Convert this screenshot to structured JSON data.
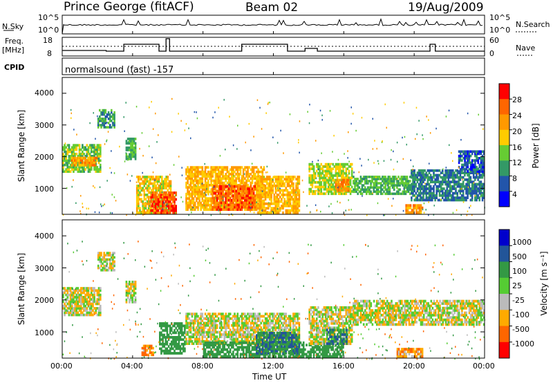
{
  "header": {
    "station": "Prince George (fitACF)",
    "beam": "Beam 02",
    "date": "19/Aug/2009"
  },
  "nsky_panel": {
    "left_label": "N.Sky",
    "right_label": "N.Search",
    "left_ticks": [
      "10^5",
      "10^0"
    ],
    "right_ticks": [
      "10^5",
      "10^0"
    ]
  },
  "freq_panel": {
    "left_label_line1": "Freq.",
    "left_label_line2": "[MHz]",
    "right_label": "Nave",
    "left_ticks": [
      "18",
      "8"
    ],
    "right_ticks": [
      "60",
      "0"
    ]
  },
  "cpid_panel": {
    "label": "CPID",
    "mode_text": "normalsound (fast) -157"
  },
  "power_panel": {
    "ylabel": "Slant Range [km]",
    "yticks": [
      "4000",
      "3000",
      "2000",
      "1000"
    ],
    "colorbar_label": "Power [dB]",
    "colorbar_ticks": [
      "28",
      "24",
      "20",
      "16",
      "12",
      "8",
      "4"
    ]
  },
  "velocity_panel": {
    "ylabel": "Slant Range [km]",
    "yticks": [
      "4000",
      "3000",
      "2000",
      "1000"
    ],
    "colorbar_label": "Velocity [m s⁻¹]",
    "colorbar_ticks": [
      "1000",
      "500",
      "100",
      "25",
      "-25",
      "-100",
      "-500",
      "-1000"
    ]
  },
  "xaxis": {
    "label": "Time UT",
    "ticks": [
      "00:00",
      "04:00",
      "08:00",
      "12:00",
      "16:00",
      "20:00",
      "00:00"
    ]
  },
  "chart_data": [
    {
      "type": "heatmap",
      "title": "Power",
      "xlabel": "Time UT",
      "ylabel": "Slant Range [km]",
      "ylim": [
        180,
        4500
      ],
      "xlim_hours": [
        0,
        24
      ],
      "colorbar": {
        "label": "Power [dB]",
        "ticks": [
          28,
          24,
          20,
          16,
          12,
          8,
          4
        ],
        "colors": [
          "#ff0000",
          "#ff6600",
          "#ff9900",
          "#ffcc00",
          "#66cc33",
          "#339966",
          "#2255aa",
          "#0000ff"
        ]
      },
      "regions": [
        {
          "t0": 0.0,
          "t1": 2.2,
          "r0": 1500,
          "r1": 2400,
          "db": 14
        },
        {
          "t0": 0.5,
          "t1": 2.0,
          "r0": 1700,
          "r1": 2000,
          "db": 22
        },
        {
          "t0": 2.0,
          "t1": 3.0,
          "r0": 2900,
          "r1": 3500,
          "db": 10
        },
        {
          "t0": 3.6,
          "t1": 4.2,
          "r0": 1900,
          "r1": 2600,
          "db": 12
        },
        {
          "t0": 4.2,
          "t1": 6.2,
          "r0": 200,
          "r1": 1400,
          "db": 18
        },
        {
          "t0": 5.0,
          "t1": 6.5,
          "r0": 200,
          "r1": 900,
          "db": 27
        },
        {
          "t0": 7.0,
          "t1": 11.5,
          "r0": 300,
          "r1": 1700,
          "db": 20
        },
        {
          "t0": 8.5,
          "t1": 11.0,
          "r0": 300,
          "r1": 1100,
          "db": 26
        },
        {
          "t0": 11.0,
          "t1": 13.5,
          "r0": 200,
          "r1": 1400,
          "db": 20
        },
        {
          "t0": 14.0,
          "t1": 16.5,
          "r0": 800,
          "r1": 1800,
          "db": 16
        },
        {
          "t0": 15.5,
          "t1": 16.3,
          "r0": 900,
          "r1": 1300,
          "db": 24
        },
        {
          "t0": 16.5,
          "t1": 19.8,
          "r0": 800,
          "r1": 1400,
          "db": 12
        },
        {
          "t0": 19.5,
          "t1": 20.5,
          "r0": 200,
          "r1": 500,
          "db": 22
        },
        {
          "t0": 19.8,
          "t1": 24.0,
          "r0": 600,
          "r1": 1600,
          "db": 8
        },
        {
          "t0": 22.5,
          "t1": 24.0,
          "r0": 1500,
          "r1": 2200,
          "db": 6
        }
      ]
    },
    {
      "type": "heatmap",
      "title": "Velocity",
      "xlabel": "Time UT",
      "ylabel": "Slant Range [km]",
      "ylim": [
        180,
        4500
      ],
      "xlim_hours": [
        0,
        24
      ],
      "colorbar": {
        "label": "Velocity [m s⁻¹]",
        "ticks": [
          1000,
          500,
          100,
          25,
          -25,
          -100,
          -500,
          -1000
        ],
        "colors": [
          "#0000cc",
          "#225599",
          "#339944",
          "#55cc33",
          "#bbbbbb",
          "#ffaa00",
          "#ff6600",
          "#ff0000"
        ]
      },
      "regions": [
        {
          "t0": 0.0,
          "t1": 2.2,
          "r0": 1500,
          "r1": 2400,
          "v": 0
        },
        {
          "t0": 2.0,
          "t1": 3.0,
          "r0": 2900,
          "r1": 3500,
          "v": 0
        },
        {
          "t0": 3.6,
          "t1": 4.2,
          "r0": 1900,
          "r1": 2600,
          "v": 0
        },
        {
          "t0": 4.5,
          "t1": 5.2,
          "r0": 250,
          "r1": 600,
          "v": -100
        },
        {
          "t0": 5.5,
          "t1": 7.0,
          "r0": 300,
          "r1": 1300,
          "v": 200
        },
        {
          "t0": 7.0,
          "t1": 13.5,
          "r0": 600,
          "r1": 1600,
          "v": 0
        },
        {
          "t0": 8.0,
          "t1": 16.0,
          "r0": 200,
          "r1": 700,
          "v": 200
        },
        {
          "t0": 11.0,
          "t1": 13.5,
          "r0": 300,
          "r1": 1000,
          "v": 500
        },
        {
          "t0": 14.0,
          "t1": 16.5,
          "r0": 600,
          "r1": 1800,
          "v": 0
        },
        {
          "t0": 15.0,
          "t1": 16.2,
          "r0": 600,
          "r1": 1100,
          "v": 500
        },
        {
          "t0": 16.5,
          "t1": 24.0,
          "r0": 1200,
          "r1": 2000,
          "v": 0
        },
        {
          "t0": 19.0,
          "t1": 20.5,
          "r0": 200,
          "r1": 500,
          "v": -100
        }
      ]
    }
  ]
}
